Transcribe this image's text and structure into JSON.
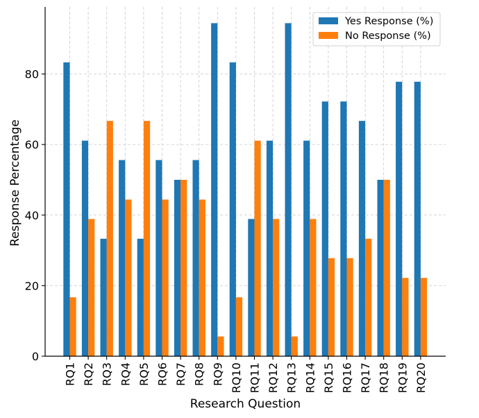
{
  "chart_data": {
    "type": "bar",
    "title": "",
    "xlabel": "Research Question",
    "ylabel": "Response Percentage",
    "ylim": [
      0,
      99
    ],
    "yticks": [
      0,
      20,
      40,
      60,
      80
    ],
    "grid": true,
    "legend_position": "top-right",
    "categories": [
      "RQ1",
      "RQ2",
      "RQ3",
      "RQ4",
      "RQ5",
      "RQ6",
      "RQ7",
      "RQ8",
      "RQ9",
      "RQ10",
      "RQ11",
      "RQ12",
      "RQ13",
      "RQ14",
      "RQ15",
      "RQ16",
      "RQ17",
      "RQ18",
      "RQ19",
      "RQ20"
    ],
    "series": [
      {
        "name": "Yes Response (%)",
        "color": "#1f77b4",
        "values": [
          83.3,
          61.1,
          33.3,
          55.6,
          33.3,
          55.6,
          50.0,
          55.6,
          94.4,
          83.3,
          38.9,
          61.1,
          94.4,
          61.1,
          72.2,
          72.2,
          66.7,
          50.0,
          77.8,
          77.8
        ]
      },
      {
        "name": "No Response (%)",
        "color": "#ff7f0e",
        "values": [
          16.7,
          38.9,
          66.7,
          44.4,
          66.7,
          44.4,
          50.0,
          44.4,
          5.6,
          16.7,
          61.1,
          38.9,
          5.6,
          38.9,
          27.8,
          27.8,
          33.3,
          50.0,
          22.2,
          22.2
        ]
      }
    ]
  }
}
